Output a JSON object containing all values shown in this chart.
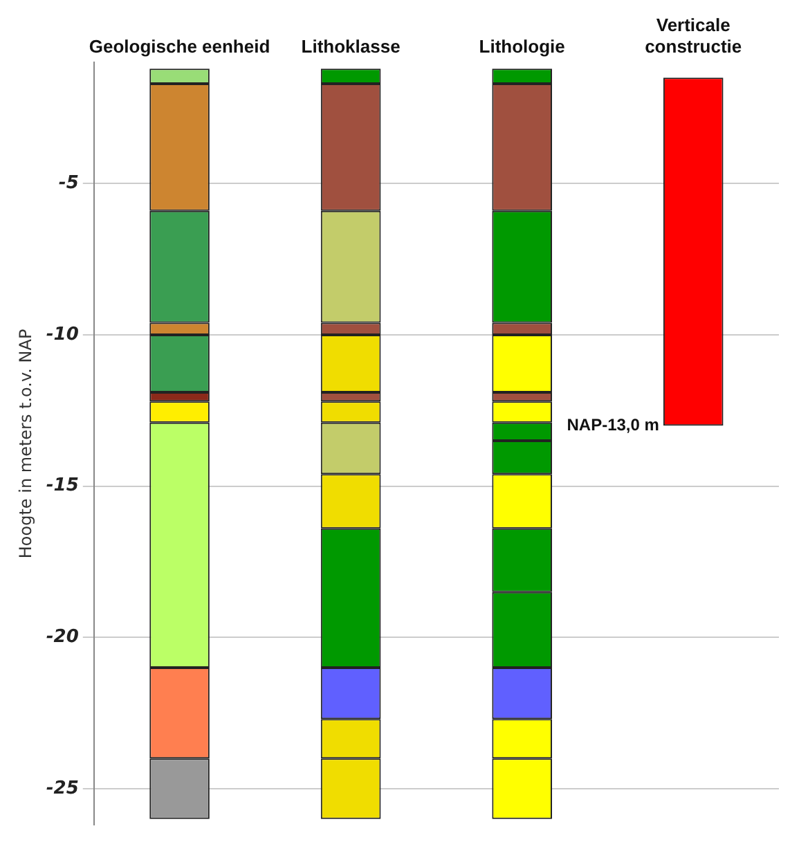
{
  "chart_data": {
    "type": "bar",
    "ylabel": "Hoogte in meters t.o.v. NAP",
    "categories": [
      "Geologische eenheid",
      "Lithoklasse",
      "Lithologie",
      "Verticale constructie"
    ],
    "ylim": [
      -26.2,
      -1
    ],
    "yticks": [
      -5,
      -10,
      -15,
      -20,
      -25
    ],
    "grid": "y",
    "legend": false,
    "annotations": [
      {
        "text": "NAP-13,0 m",
        "x": "Verticale constructie",
        "y": -13
      }
    ],
    "series": [
      {
        "base": [
          -1.7,
          -1.7,
          -1.7,
          -13.0
        ],
        "values": [
          0.5,
          0.5,
          0.5,
          11.5
        ],
        "colors": [
          "#99dd77",
          "#009900",
          "#009900",
          "#ff0000"
        ]
      },
      {
        "base": [
          -5.9,
          -5.9,
          -5.9,
          null
        ],
        "values": [
          4.2,
          4.2,
          4.2,
          null
        ],
        "colors": [
          "#cd8530",
          "#a0503f",
          "#a0503f",
          null
        ]
      },
      {
        "base": [
          -9.6,
          -9.6,
          -9.6,
          null
        ],
        "values": [
          3.7,
          3.7,
          3.7,
          null
        ],
        "colors": [
          "#3a9e52",
          "#c3cc6a",
          "#009900",
          null
        ]
      },
      {
        "base": [
          -10.0,
          -10.0,
          -10.0,
          null
        ],
        "values": [
          0.4,
          0.4,
          0.4,
          null
        ],
        "colors": [
          "#cd8530",
          "#a0503f",
          "#a0503f",
          null
        ]
      },
      {
        "base": [
          -11.9,
          -11.9,
          -11.9,
          null
        ],
        "values": [
          1.9,
          1.9,
          1.9,
          null
        ],
        "colors": [
          "#3a9e52",
          "#f0dd00",
          "#ffff00",
          null
        ]
      },
      {
        "base": [
          -12.2,
          -12.2,
          -12.2,
          null
        ],
        "values": [
          0.3,
          0.3,
          0.3,
          null
        ],
        "colors": [
          "#8b2a1a",
          "#a0503f",
          "#a0503f",
          null
        ]
      },
      {
        "base": [
          -12.9,
          -12.9,
          -12.9,
          null
        ],
        "values": [
          0.7,
          0.7,
          0.7,
          null
        ],
        "colors": [
          "#ffee00",
          "#f0dd00",
          "#ffff00",
          null
        ]
      },
      {
        "base": [
          -21.0,
          -14.6,
          -13.5,
          null
        ],
        "values": [
          8.1,
          1.7,
          0.6,
          null
        ],
        "colors": [
          "#bbff66",
          "#c3cc6a",
          "#009900",
          null
        ]
      },
      {
        "base": [
          -24.0,
          -16.4,
          -14.6,
          null
        ],
        "values": [
          3.0,
          1.8,
          1.1,
          null
        ],
        "colors": [
          "#ff7f50",
          "#f0dd00",
          "#009900",
          null
        ]
      },
      {
        "base": [
          -26.0,
          -21.0,
          -16.4,
          null
        ],
        "values": [
          2.0,
          4.6,
          1.8,
          null
        ],
        "colors": [
          "#999999",
          "#009900",
          "#ffff00",
          null
        ]
      },
      {
        "base": [
          null,
          -22.7,
          -18.5,
          null
        ],
        "values": [
          null,
          1.7,
          2.1,
          null
        ],
        "colors": [
          null,
          "#6060ff",
          "#009900",
          null
        ]
      },
      {
        "base": [
          null,
          -24.0,
          -21.0,
          null
        ],
        "values": [
          null,
          1.3,
          2.5,
          null
        ],
        "colors": [
          null,
          "#f0dd00",
          "#009900",
          null
        ]
      },
      {
        "base": [
          null,
          -26.0,
          -22.7,
          null
        ],
        "values": [
          null,
          2.0,
          1.7,
          null
        ],
        "colors": [
          null,
          "#f0dd00",
          "#6060ff",
          null
        ]
      },
      {
        "base": [
          null,
          null,
          -24.0,
          null
        ],
        "values": [
          null,
          null,
          1.3,
          null
        ],
        "colors": [
          null,
          null,
          "#ffff00",
          null
        ]
      },
      {
        "base": [
          null,
          null,
          -26.0,
          null
        ],
        "values": [
          null,
          null,
          2.0,
          null
        ],
        "colors": [
          null,
          null,
          "#ffff00",
          null
        ]
      }
    ]
  }
}
